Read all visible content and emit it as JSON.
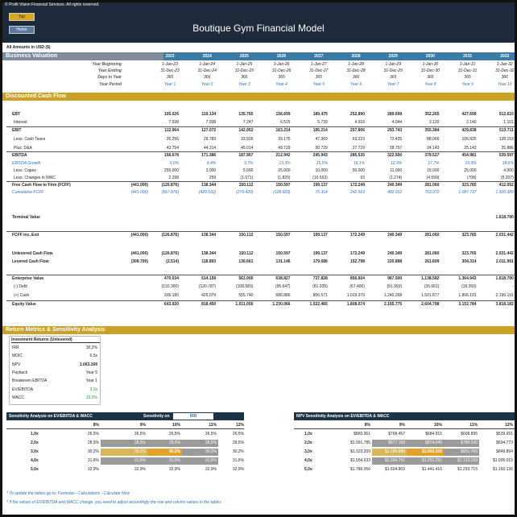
{
  "header": {
    "copyright": "© Profit Vision Financial Services. All rights reserved.",
    "buttons": [
      "Top",
      "Home"
    ],
    "title": "Boutique Gym Financial Model",
    "currency_note": "All Amounts in USD ($)"
  },
  "valuation": {
    "title": "Business Valuation",
    "years": [
      "2023",
      "2024",
      "2025",
      "2026",
      "2027",
      "2028",
      "2029",
      "2030",
      "2031",
      "2032"
    ],
    "timeline": [
      {
        "label": "Year Beginning",
        "values": [
          "1-Jan-23",
          "1-Jan-24",
          "1-Jan-25",
          "1-Jan-26",
          "1-Jan-27",
          "1-Jan-28",
          "1-Jan-29",
          "1-Jan-30",
          "1-Jan-31",
          "1-Jan-32"
        ]
      },
      {
        "label": "Year Ending",
        "values": [
          "31-Dec-23",
          "31-Dec-24",
          "31-Dec-25",
          "31-Dec-26",
          "31-Dec-27",
          "31-Dec-28",
          "31-Dec-29",
          "31-Dec-30",
          "31-Dec-31",
          "31-Dec-32"
        ]
      },
      {
        "label": "Days in Year",
        "values": [
          "365",
          "366",
          "365",
          "365",
          "365",
          "366",
          "365",
          "365",
          "365",
          "366"
        ]
      },
      {
        "label": "Year Period",
        "values": [
          "Year 1",
          "Year 2",
          "Year 3",
          "Year 4",
          "Year 5",
          "Year 6",
          "Year 7",
          "Year 8",
          "Year 9",
          "Year 10"
        ]
      }
    ]
  },
  "dcf": {
    "title": "Discounted Cash Flow",
    "rows": [
      {
        "label": "EBT",
        "values": [
          "105.026",
          "119.134",
          "135.765",
          "156.699",
          "189.475",
          "252.890",
          "289.699",
          "352.265",
          "427.699",
          "512.610"
        ]
      },
      {
        "label": "Interest",
        "values": [
          "7.938",
          "7.938",
          "7.247",
          "6.515",
          "5.739",
          "4.916",
          "4.044",
          "3.120",
          "2.140",
          "1.101"
        ]
      },
      {
        "label": "EBIT",
        "values": [
          "112.964",
          "127.072",
          "142.952",
          "163.214",
          "195.214",
          "257.806",
          "293.743",
          "355.384",
          "429.838",
          "513.711"
        ]
      },
      {
        "label": "Less: Cash Taxes",
        "values": [
          "26.256",
          "29.783",
          "33.926",
          "39.175",
          "47.369",
          "63.223",
          "72.425",
          "88.066",
          "106.925",
          "128.153"
        ]
      },
      {
        "label": "Plus: D&A",
        "values": [
          "43.754",
          "44.314",
          "45.014",
          "49.729",
          "50.729",
          "27.729",
          "28.757",
          "24.143",
          "25.143",
          "25.886"
        ]
      },
      {
        "label": "EBITDA",
        "values": [
          "156.678",
          "171.386",
          "187.967",
          "212.942",
          "245.943",
          "285.535",
          "322.500",
          "379.527",
          "454.981",
          "539.597"
        ]
      },
      {
        "label": "EBITDA Growth",
        "values": [
          "0,0%",
          "9,4%",
          "9,7%",
          "13,3%",
          "15,5%",
          "16,1%",
          "12,9%",
          "17,7%",
          "19,9%",
          "18,6%"
        ]
      },
      {
        "label": "Less: Capex",
        "values": [
          "255.000",
          "3.000",
          "5.000",
          "25.000",
          "10.000",
          "50.000",
          "11.000",
          "15.000",
          "25.000",
          "4.000"
        ]
      },
      {
        "label": "Less: Changes in NWC",
        "values": [
          "2.298",
          "259",
          "(1.071)",
          "(1.829)",
          "(10.563)",
          "63",
          "(1.274)",
          "(4.599)",
          "(708)",
          "(5.207)"
        ]
      },
      {
        "label": "Free Cash Flow to Firm (FCFF)",
        "initial": "(441.000)",
        "values": [
          "(126.876)",
          "138.344",
          "150.112",
          "150.597",
          "199.137",
          "172.249",
          "240.349",
          "281.060",
          "323.765",
          "412.052"
        ]
      },
      {
        "label": "Cumulative FCFF",
        "initial": "(441.000)",
        "values": [
          "(567.876)",
          "(429.532)",
          "(279.420)",
          "(128.823)",
          "70.314",
          "242.563",
          "482.912",
          "763.972",
          "1.087.737",
          "1.500.389"
        ]
      },
      {
        "label": "Terminal Value",
        "values": [
          null,
          null,
          null,
          null,
          null,
          null,
          null,
          null,
          null,
          "1.618.790"
        ]
      },
      {
        "label": "FCFF inc. Exit",
        "initial": "(441.000)",
        "values": [
          "(126.876)",
          "138.344",
          "150.112",
          "150.597",
          "199.137",
          "172.249",
          "240.349",
          "281.060",
          "323.765",
          "2.031.442"
        ]
      },
      {
        "label": "Unlevered Cash Flow",
        "initial": "(441.000)",
        "values": [
          "(126.876)",
          "138.344",
          "150.112",
          "150.597",
          "199.137",
          "172.249",
          "240.349",
          "281.060",
          "323.765",
          "2.031.442"
        ]
      },
      {
        "label": "Levered Cash Flow",
        "initial": "(308.700)",
        "values": [
          "(2.514)",
          "118.893",
          "130.661",
          "131.146",
          "179.686",
          "152.798",
          "220.898",
          "261.609",
          "304.314",
          "2.011.991"
        ]
      },
      {
        "label": "Enterprise Value",
        "values": [
          "470.034",
          "514.158",
          "563.900",
          "638.827",
          "737.828",
          "856.604",
          "967.500",
          "1.138.582",
          "1.364.943",
          "1.618.790"
        ]
      },
      {
        "label": "(-) Debt",
        "values": [
          "(132.300)",
          "(120.787)",
          "(108.583)",
          "(95.647)",
          "(81.935)",
          "(67.400)",
          "(51.993)",
          "(35.661)",
          "(18.350)",
          "-"
        ]
      },
      {
        "label": "(+) Cash",
        "values": [
          "306.180",
          "425.079",
          "555.740",
          "686.886",
          "806.571",
          "1.019.370",
          "1.240.268",
          "1.501.877",
          "1.806.191",
          "2.199.191"
        ]
      },
      {
        "label": "Equity Value",
        "values": [
          "643.920",
          "818.450",
          "1.011.056",
          "1.230.066",
          "1.522.465",
          "1.808.574",
          "2.155.775",
          "2.604.798",
          "3.152.784",
          "3.818.182"
        ]
      }
    ]
  },
  "returns": {
    "title": "Return Metrics & Sensitivity Analysis",
    "box_title": "Investment Returns (Unlevered)",
    "metrics": [
      {
        "label": "IRR",
        "value": "30,2%"
      },
      {
        "label": "MOIC",
        "value": "6,5x"
      },
      {
        "label": "NPV",
        "value": "1.063.166"
      },
      {
        "label": "Payback",
        "value": "Year 5"
      },
      {
        "label": "Breakeven EBITDA",
        "value": "Year 1"
      },
      {
        "label": "EV/EBITDA",
        "value": "3,0x"
      },
      {
        "label": "WACC",
        "value": "10,0%"
      }
    ]
  },
  "irr_table": {
    "title": "Sensitivity Analysis on EV/EBITDA & WACC",
    "selector_label": "Sensitivity on",
    "selector_value": "IRR",
    "columns": [
      "8%",
      "9%",
      "10%",
      "11%",
      "12%"
    ],
    "rows": [
      {
        "label": "1,0x",
        "values": [
          "26,5%",
          "26,5%",
          "26,5%",
          "26,5%",
          "26,5%"
        ]
      },
      {
        "label": "2,0x",
        "values": [
          "28,5%",
          "28,5%",
          "28,5%",
          "28,5%",
          "28,5%"
        ]
      },
      {
        "label": "3,0x",
        "values": [
          "30,2%",
          "30,2%",
          "30,2%",
          "30,2%",
          "30,2%"
        ]
      },
      {
        "label": "4,0x",
        "values": [
          "31,6%",
          "31,6%",
          "31,6%",
          "31,6%",
          "31,6%"
        ]
      },
      {
        "label": "5,0x",
        "values": [
          "32,9%",
          "32,9%",
          "32,9%",
          "32,9%",
          "32,9%"
        ]
      }
    ]
  },
  "npv_table": {
    "title": "NPV Sensitivity Analysis on EV/EBITDA & WACC",
    "columns": [
      "8%",
      "9%",
      "10%",
      "11%",
      "12%"
    ],
    "rows": [
      {
        "label": "1,0x",
        "values": [
          "$860.361",
          "$768.457",
          "$684.915",
          "$608.895",
          "$539.651"
        ]
      },
      {
        "label": "2,0x",
        "values": [
          "$1.091.785",
          "$977.168",
          "$874.040",
          "$780.330",
          "$694.773"
        ]
      },
      {
        "label": "3,0x",
        "values": [
          "$1.323.209",
          "$1.185.880",
          "$1.063.166",
          "$951.765",
          "$849.894"
        ]
      },
      {
        "label": "4,0x",
        "values": [
          "$1.554.633",
          "$1.394.791",
          "$1.252.291",
          "$1.123.199",
          "$1.005.015"
        ]
      },
      {
        "label": "5,0x",
        "values": [
          "$1.786.056",
          "$1.604.903",
          "$1.441.416",
          "$1.293.715",
          "$1.160.136"
        ]
      }
    ]
  },
  "notes": [
    "* To update the tables go to: Formulas - Calculations - Calculate Now",
    "* If the values of EV/EBITDA and WACC change, you need to adjust accordingly the row and column values in the tables"
  ]
}
